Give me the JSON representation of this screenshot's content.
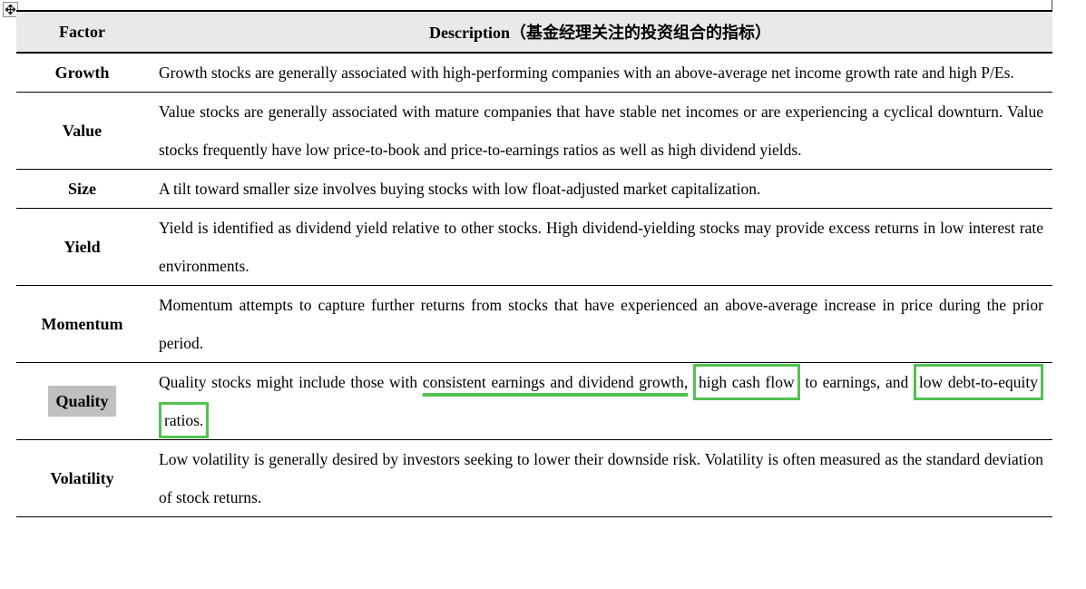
{
  "colors": {
    "annotation_green": "#52c152",
    "header_background": "#e9e9e9",
    "factor_highlight_gray": "#c0c0c0",
    "table_border": "#000000"
  },
  "icons": {
    "move_handle": "table-move-handle-icon"
  },
  "table": {
    "header": {
      "factor": "Factor",
      "description": "Description（基金经理关注的投资组合的指标）"
    },
    "rows": [
      {
        "factor": "Growth",
        "factor_highlighted": false,
        "segments": [
          {
            "style": "plain",
            "text": "Growth stocks are generally associated with high-performing companies with an above-average net income growth rate and high P/Es."
          }
        ]
      },
      {
        "factor": "Value",
        "factor_highlighted": false,
        "segments": [
          {
            "style": "plain",
            "text": "Value stocks are generally associated with mature companies that have stable net incomes or are experiencing a cyclical downturn. Value stocks frequently have low price-to-book and price-to-earnings ratios as well as high dividend yields."
          }
        ]
      },
      {
        "factor": "Size",
        "factor_highlighted": false,
        "segments": [
          {
            "style": "plain",
            "text": "A tilt toward smaller size involves buying stocks with low float-adjusted market capitalization."
          }
        ]
      },
      {
        "factor": "Yield",
        "factor_highlighted": false,
        "segments": [
          {
            "style": "plain",
            "text": "Yield is identified as dividend yield relative to other stocks. High dividend-yielding stocks may provide excess returns in low interest rate environments."
          }
        ]
      },
      {
        "factor": "Momentum",
        "factor_highlighted": false,
        "segments": [
          {
            "style": "plain",
            "text": "Momentum attempts to capture further returns from stocks that have experienced an above-average increase in price during the prior period."
          }
        ]
      },
      {
        "factor": "Quality",
        "factor_highlighted": true,
        "segments": [
          {
            "style": "plain",
            "text": "Quality stocks might include those with "
          },
          {
            "style": "green-underline",
            "text": "consistent earnings and dividend growth,"
          },
          {
            "style": "plain",
            "text": " "
          },
          {
            "style": "green-box",
            "text": "high cash flow"
          },
          {
            "style": "plain",
            "text": " to earnings, and "
          },
          {
            "style": "green-box",
            "text": "low debt-to-equity ratios."
          }
        ]
      },
      {
        "factor": "Volatility",
        "factor_highlighted": false,
        "segments": [
          {
            "style": "plain",
            "text": "Low volatility is generally desired by investors seeking to lower their downside risk. Volatility is often measured as the standard deviation of stock returns."
          }
        ]
      }
    ]
  }
}
